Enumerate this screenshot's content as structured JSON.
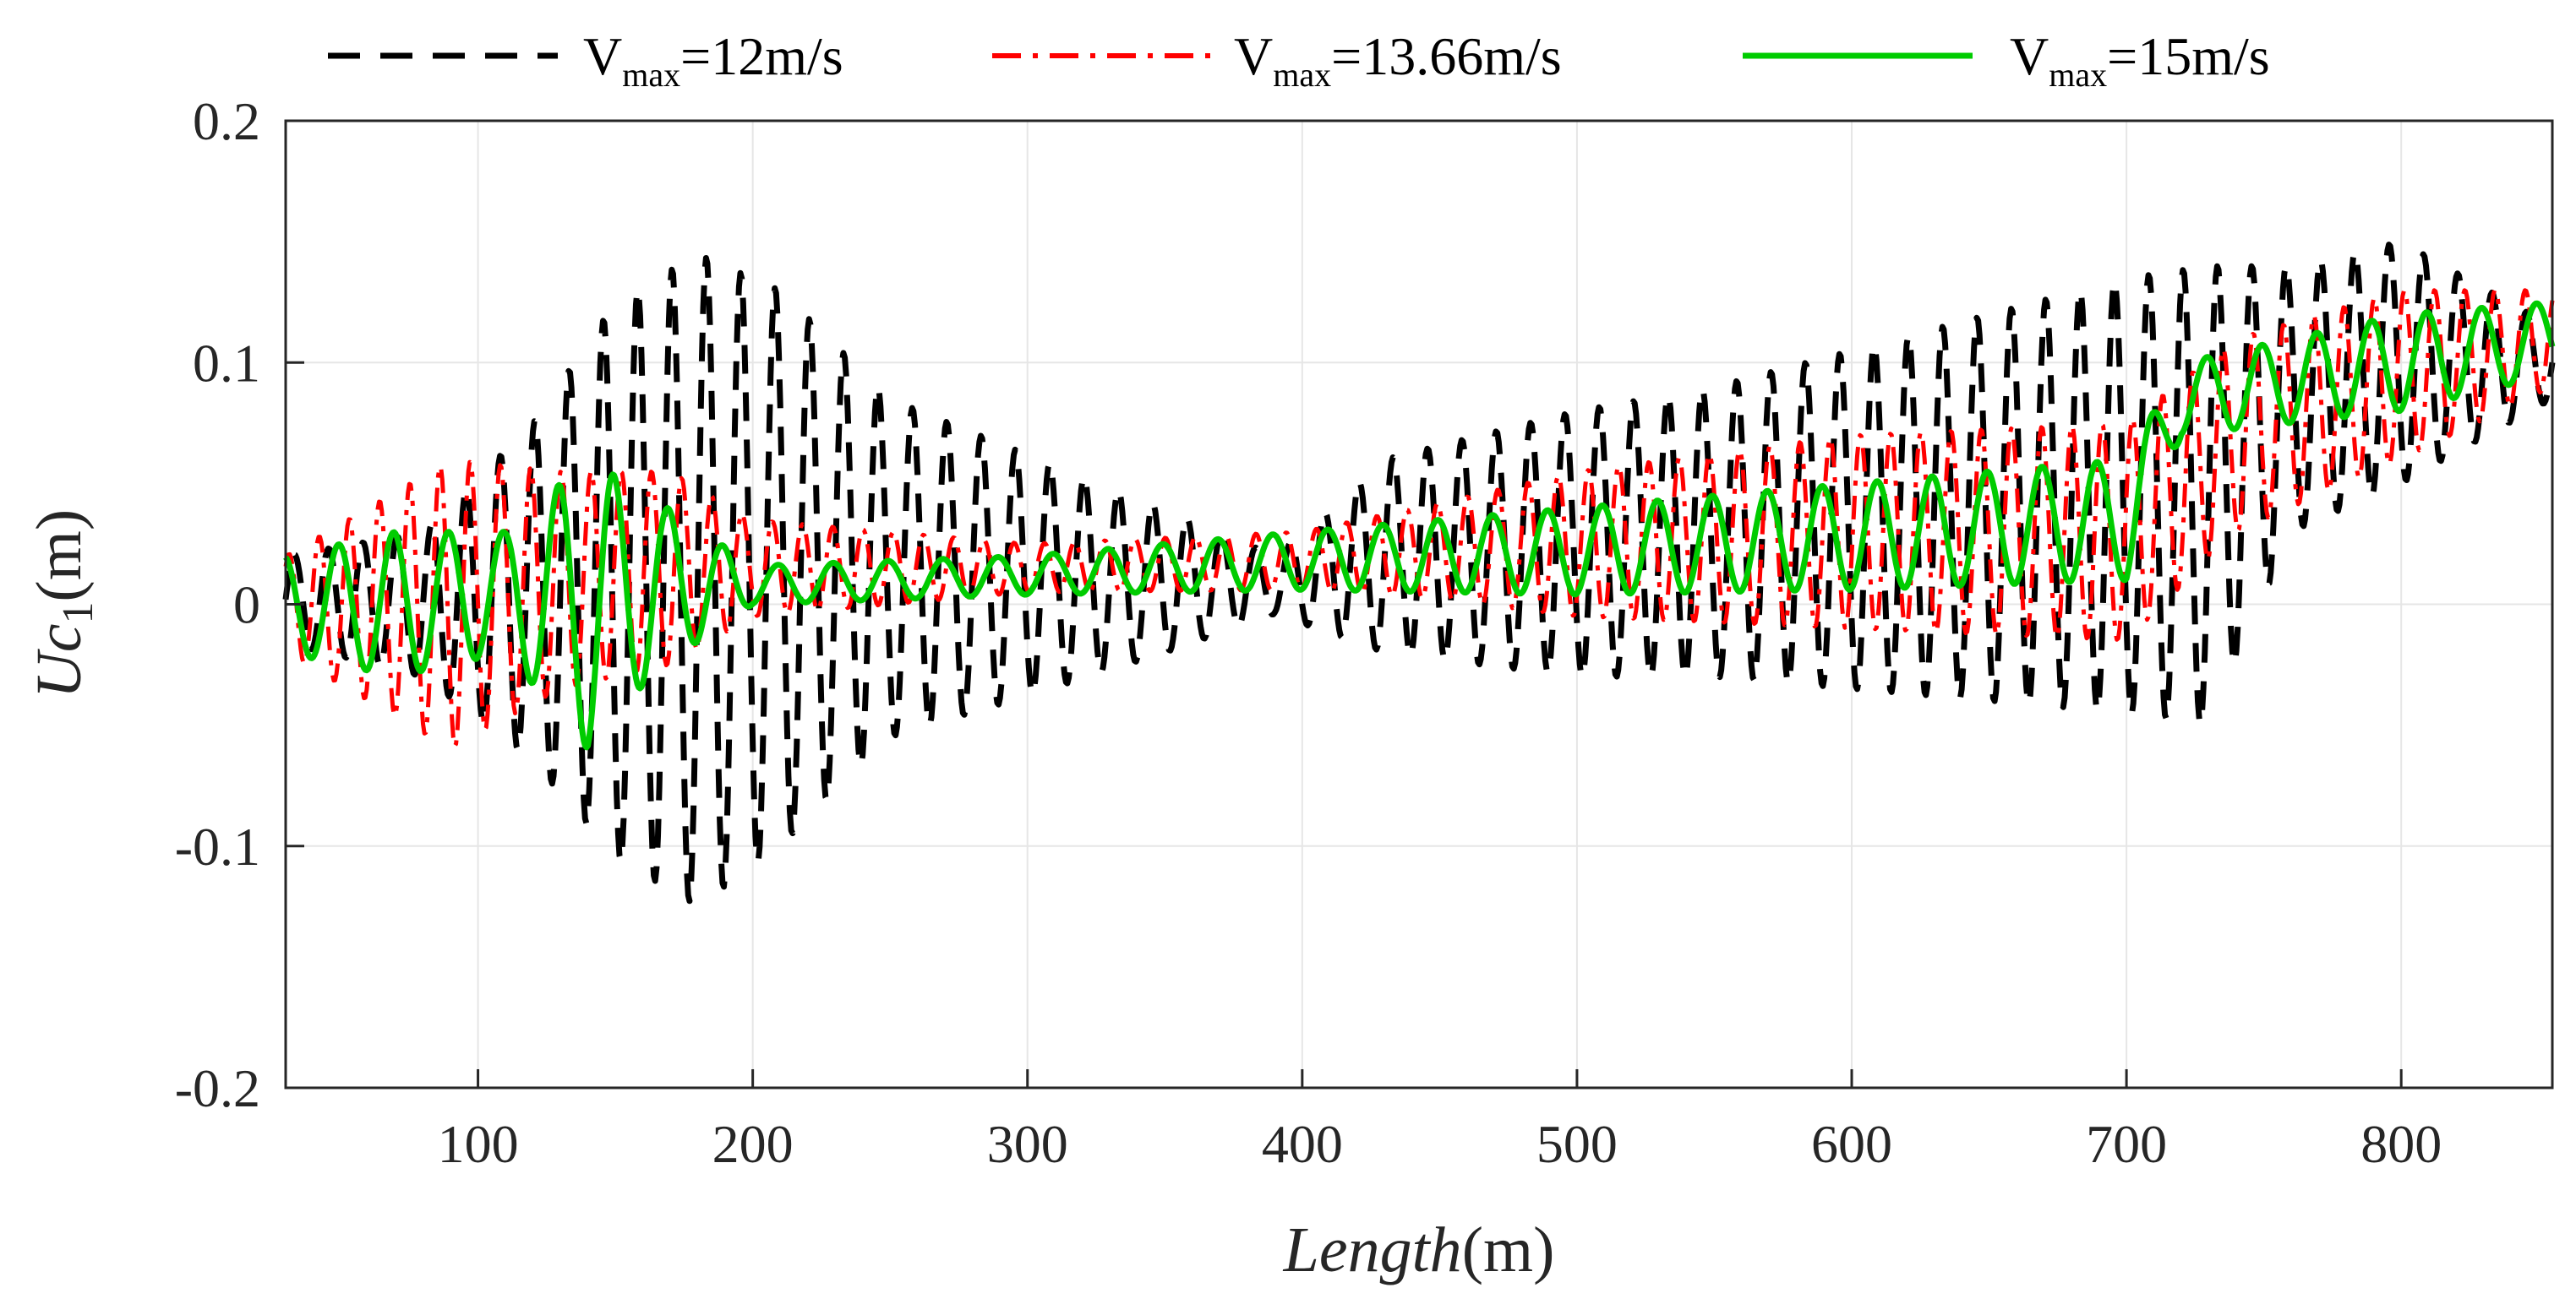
{
  "chart_data": {
    "type": "line",
    "xlabel": {
      "italic": "Length",
      "unit": "(m)"
    },
    "ylabel": {
      "italic": "Uc",
      "subscript": "1",
      "unit": "(m)"
    },
    "xlim": [
      30,
      855
    ],
    "ylim": [
      -0.2,
      0.2
    ],
    "x_ticks": [
      100,
      200,
      300,
      400,
      500,
      600,
      700,
      800
    ],
    "x_tick_labels": [
      "100",
      "200",
      "300",
      "400",
      "500",
      "600",
      "700",
      "800"
    ],
    "y_ticks": [
      -0.2,
      -0.1,
      0,
      0.1,
      0.2
    ],
    "y_tick_labels": [
      "-0.2",
      "-0.1",
      "0",
      "0.1",
      "0.2"
    ],
    "grid": true,
    "legend_position": "top",
    "series": [
      {
        "legend": {
          "prefix": "V",
          "sub": "max",
          "suffix": "=12m/s"
        },
        "color": "#000000",
        "style": "dashed",
        "envelope": [
          {
            "x": 30,
            "center": 0.002,
            "amp": 0.018
          },
          {
            "x": 80,
            "center": 0.0,
            "amp": 0.03
          },
          {
            "x": 120,
            "center": 0.005,
            "amp": 0.07
          },
          {
            "x": 150,
            "center": 0.01,
            "amp": 0.115
          },
          {
            "x": 180,
            "center": 0.01,
            "amp": 0.135
          },
          {
            "x": 210,
            "center": 0.015,
            "amp": 0.115
          },
          {
            "x": 250,
            "center": 0.015,
            "amp": 0.07
          },
          {
            "x": 300,
            "center": 0.012,
            "amp": 0.05
          },
          {
            "x": 350,
            "center": 0.01,
            "amp": 0.03
          },
          {
            "x": 390,
            "center": 0.008,
            "amp": 0.012
          },
          {
            "x": 430,
            "center": 0.02,
            "amp": 0.04
          },
          {
            "x": 500,
            "center": 0.025,
            "amp": 0.055
          },
          {
            "x": 550,
            "center": 0.03,
            "amp": 0.06
          },
          {
            "x": 600,
            "center": 0.035,
            "amp": 0.07
          },
          {
            "x": 650,
            "center": 0.04,
            "amp": 0.08
          },
          {
            "x": 700,
            "center": 0.045,
            "amp": 0.09
          },
          {
            "x": 730,
            "center": 0.045,
            "amp": 0.095
          },
          {
            "x": 760,
            "center": 0.085,
            "amp": 0.055
          },
          {
            "x": 800,
            "center": 0.1,
            "amp": 0.05
          },
          {
            "x": 855,
            "center": 0.1,
            "amp": 0.015
          }
        ],
        "period": 12.5
      },
      {
        "legend": {
          "prefix": "V",
          "sub": "max",
          "suffix": "=13.66m/s"
        },
        "color": "#ff0000",
        "style": "dashdot",
        "envelope": [
          {
            "x": 30,
            "center": 0.0,
            "amp": 0.02
          },
          {
            "x": 90,
            "center": 0.0,
            "amp": 0.06
          },
          {
            "x": 130,
            "center": 0.01,
            "amp": 0.045
          },
          {
            "x": 170,
            "center": 0.015,
            "amp": 0.04
          },
          {
            "x": 200,
            "center": 0.015,
            "amp": 0.02
          },
          {
            "x": 300,
            "center": 0.015,
            "amp": 0.01
          },
          {
            "x": 400,
            "center": 0.018,
            "amp": 0.012
          },
          {
            "x": 450,
            "center": 0.022,
            "amp": 0.02
          },
          {
            "x": 500,
            "center": 0.025,
            "amp": 0.03
          },
          {
            "x": 600,
            "center": 0.03,
            "amp": 0.04
          },
          {
            "x": 700,
            "center": 0.03,
            "amp": 0.045
          },
          {
            "x": 740,
            "center": 0.07,
            "amp": 0.04
          },
          {
            "x": 800,
            "center": 0.095,
            "amp": 0.035
          },
          {
            "x": 855,
            "center": 0.11,
            "amp": 0.02
          }
        ],
        "period": 11
      },
      {
        "legend": {
          "prefix": "V",
          "sub": "max",
          "suffix": "=15m/s"
        },
        "color": "#00cc00",
        "style": "solid",
        "envelope": [
          {
            "x": 30,
            "center": 0.0,
            "amp": 0.02
          },
          {
            "x": 70,
            "center": 0.0,
            "amp": 0.03
          },
          {
            "x": 110,
            "center": 0.005,
            "amp": 0.025
          },
          {
            "x": 140,
            "center": 0.0,
            "amp": 0.06
          },
          {
            "x": 165,
            "center": 0.008,
            "amp": 0.035
          },
          {
            "x": 200,
            "center": 0.008,
            "amp": 0.008
          },
          {
            "x": 300,
            "center": 0.012,
            "amp": 0.008
          },
          {
            "x": 400,
            "center": 0.018,
            "amp": 0.012
          },
          {
            "x": 500,
            "center": 0.022,
            "amp": 0.018
          },
          {
            "x": 600,
            "center": 0.028,
            "amp": 0.022
          },
          {
            "x": 700,
            "center": 0.035,
            "amp": 0.025
          },
          {
            "x": 720,
            "center": 0.085,
            "amp": 0.015
          },
          {
            "x": 800,
            "center": 0.1,
            "amp": 0.02
          },
          {
            "x": 855,
            "center": 0.11,
            "amp": 0.015
          }
        ],
        "period": 20
      }
    ]
  }
}
